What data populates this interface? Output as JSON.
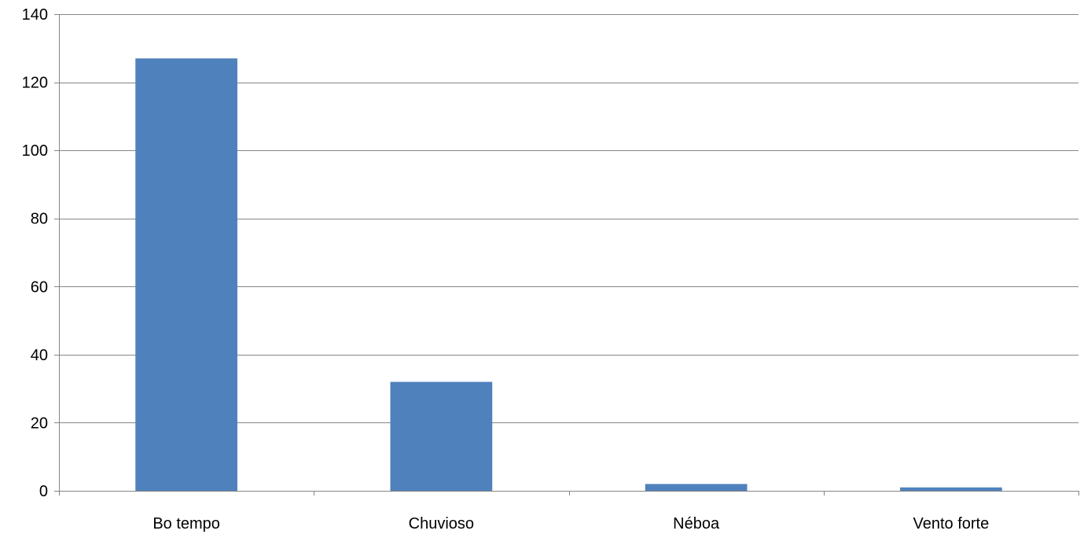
{
  "chart_data": {
    "type": "bar",
    "categories": [
      "Bo tempo",
      "Chuvioso",
      "Néboa",
      "Vento forte"
    ],
    "values": [
      127,
      32,
      2,
      1
    ],
    "ylim": [
      0,
      140
    ],
    "yticks": [
      0,
      20,
      40,
      60,
      80,
      100,
      120,
      140
    ],
    "grid": true,
    "legend": "none",
    "colors": {
      "bar": "#4f81bd",
      "grid": "#868686",
      "text": "#000000"
    }
  }
}
